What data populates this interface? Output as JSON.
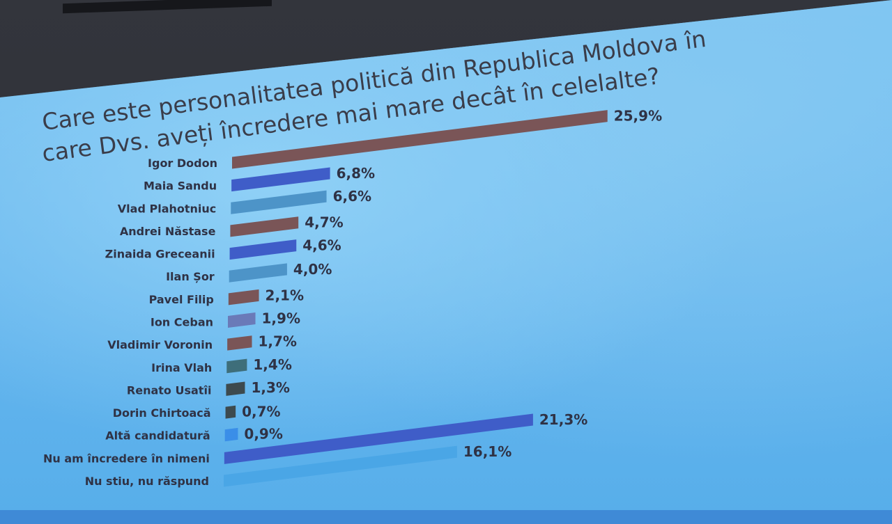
{
  "chart_data": {
    "type": "bar",
    "orientation": "horizontal",
    "title_lines": [
      "Care este personalitatea politică din Republica Moldova în",
      "care Dvs. aveți încredere mai mare decât în celelalte?"
    ],
    "categories": [
      "Igor Dodon",
      "Maia Sandu",
      "Vlad Plahotniuc",
      "Andrei Năstase",
      "Zinaida Greceanii",
      "Ilan Șor",
      "Pavel Filip",
      "Ion Ceban",
      "Vladimir Voronin",
      "Irina Vlah",
      "Renato Usatîi",
      "Dorin Chirtoacă",
      "Altă candidatură",
      "Nu am încredere în nimeni",
      "Nu stiu, nu răspund"
    ],
    "values": [
      25.9,
      6.8,
      6.6,
      4.7,
      4.6,
      4.0,
      2.1,
      1.9,
      1.7,
      1.4,
      1.3,
      0.7,
      0.9,
      21.3,
      16.1
    ],
    "value_labels": [
      "25,9%",
      "6,8%",
      "6,6%",
      "4,7%",
      "4,6%",
      "4,0%",
      "2,1%",
      "1,9%",
      "1,7%",
      "1,4%",
      "1,3%",
      "0,7%",
      "0,9%",
      "21,3%",
      "16,1%"
    ],
    "bar_colors": [
      "#7a5557",
      "#3f5dc8",
      "#4d94c8",
      "#7a5557",
      "#3f5dc8",
      "#4d94c8",
      "#7a5557",
      "#6a7ab8",
      "#7a5557",
      "#3e6e7a",
      "#3d4a4e",
      "#3d4a4e",
      "#3a8ee8",
      "#3f5dc8",
      "#4aa6e6"
    ],
    "xlim": [
      0,
      30
    ],
    "grid": false,
    "legend": "none"
  }
}
